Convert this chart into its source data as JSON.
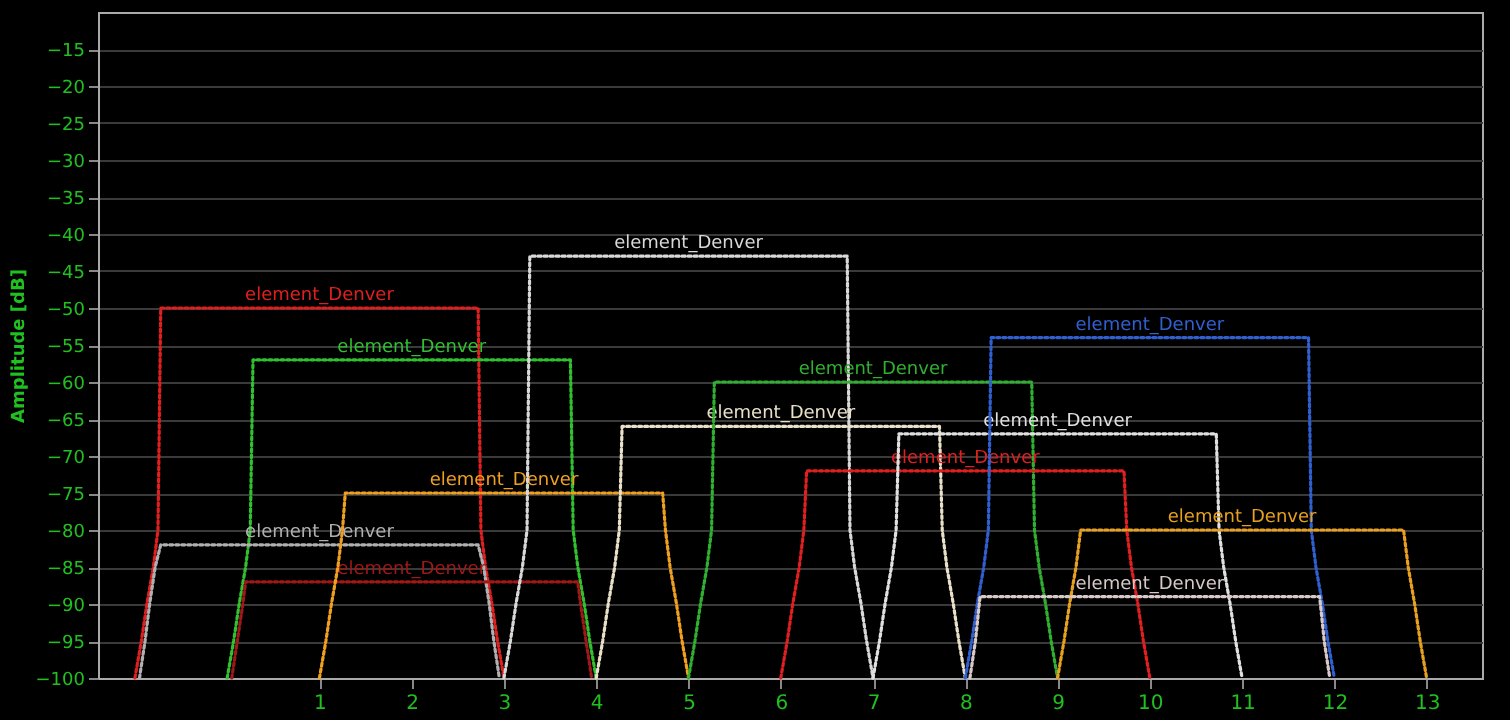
{
  "chart_data": {
    "type": "line",
    "ylabel": "Amplitude [dB]",
    "xlim": [
      -1.4,
      13.6
    ],
    "ylim": [
      -100,
      -10
    ],
    "xticks": [
      1,
      2,
      3,
      4,
      5,
      6,
      7,
      8,
      9,
      10,
      11,
      12,
      13
    ],
    "yticks": [
      -100,
      -95,
      -90,
      -85,
      -80,
      -75,
      -70,
      -65,
      -60,
      -55,
      -50,
      -45,
      -40,
      -35,
      -30,
      -25,
      -20,
      -15
    ],
    "grid": "y",
    "legend": false,
    "marker": "none",
    "line_style": "dotted",
    "series": [
      {
        "name": "element_Denver",
        "color": "#e02020",
        "x": [
          -1,
          -0.93,
          -0.87,
          -0.8,
          -0.75,
          -0.72,
          2.72,
          2.75,
          2.8,
          2.87,
          2.93,
          3
        ],
        "values": [
          -100,
          -95,
          -90,
          -85,
          -80,
          -50,
          -50,
          -80,
          -85,
          -90,
          -95,
          -100
        ]
      },
      {
        "name": "element_Denver",
        "color": "#30c030",
        "x": [
          0,
          0.07,
          0.13,
          0.2,
          0.25,
          0.28,
          3.72,
          3.75,
          3.8,
          3.87,
          3.93,
          4
        ],
        "values": [
          -100,
          -95,
          -90,
          -85,
          -80,
          -57,
          -57,
          -80,
          -85,
          -90,
          -95,
          -100
        ]
      },
      {
        "name": "element_Denver",
        "color": "#b0b0b0",
        "x": [
          -0.95,
          -0.89,
          -0.84,
          -0.78,
          -0.72,
          2.72,
          2.78,
          2.84,
          2.89,
          2.95
        ],
        "values": [
          -100,
          -95,
          -90,
          -85,
          -82,
          -82,
          -85,
          -90,
          -95,
          -100
        ]
      },
      {
        "name": "element_Denver",
        "color": "#a01818",
        "x": [
          0.05,
          0.11,
          0.17,
          0.2,
          3.8,
          3.83,
          3.89,
          3.95
        ],
        "values": [
          -100,
          -95,
          -90,
          -87,
          -87,
          -90,
          -95,
          -100
        ]
      },
      {
        "name": "element_Denver",
        "color": "#f0a020",
        "x": [
          1,
          1.07,
          1.13,
          1.2,
          1.25,
          1.28,
          4.72,
          4.75,
          4.8,
          4.87,
          4.93,
          5
        ],
        "values": [
          -100,
          -95,
          -90,
          -85,
          -80,
          -75,
          -75,
          -80,
          -85,
          -90,
          -95,
          -100
        ]
      },
      {
        "name": "element_Denver",
        "color": "#d8d8d8",
        "x": [
          3,
          3.07,
          3.13,
          3.2,
          3.25,
          3.28,
          6.72,
          6.75,
          6.8,
          6.87,
          6.93,
          7
        ],
        "values": [
          -100,
          -95,
          -90,
          -85,
          -80,
          -43,
          -43,
          -80,
          -85,
          -90,
          -95,
          -100
        ]
      },
      {
        "name": "element_Denver",
        "color": "#e8e0c8",
        "x": [
          4,
          4.07,
          4.13,
          4.2,
          4.25,
          4.28,
          7.72,
          7.75,
          7.8,
          7.87,
          7.93,
          8
        ],
        "values": [
          -100,
          -95,
          -90,
          -85,
          -80,
          -66,
          -66,
          -80,
          -85,
          -90,
          -95,
          -100
        ]
      },
      {
        "name": "element_Denver",
        "color": "#30b030",
        "x": [
          5,
          5.07,
          5.13,
          5.2,
          5.25,
          5.28,
          8.72,
          8.75,
          8.8,
          8.87,
          8.93,
          9
        ],
        "values": [
          -100,
          -95,
          -90,
          -85,
          -80,
          -60,
          -60,
          -80,
          -85,
          -90,
          -95,
          -100
        ]
      },
      {
        "name": "element_Denver",
        "color": "#e02020",
        "x": [
          6,
          6.07,
          6.13,
          6.2,
          6.25,
          6.28,
          9.72,
          9.75,
          9.8,
          9.87,
          9.93,
          10
        ],
        "values": [
          -100,
          -95,
          -90,
          -85,
          -80,
          -72,
          -72,
          -80,
          -85,
          -90,
          -95,
          -100
        ]
      },
      {
        "name": "element_Denver",
        "color": "#e0e0e0",
        "x": [
          7,
          7.07,
          7.13,
          7.2,
          7.25,
          7.28,
          10.72,
          10.75,
          10.8,
          10.87,
          10.93,
          11
        ],
        "values": [
          -100,
          -95,
          -90,
          -85,
          -80,
          -67,
          -67,
          -80,
          -85,
          -90,
          -95,
          -100
        ]
      },
      {
        "name": "element_Denver",
        "color": "#3060d0",
        "x": [
          8,
          8.07,
          8.13,
          8.2,
          8.25,
          8.28,
          11.72,
          11.75,
          11.8,
          11.87,
          11.93,
          12
        ],
        "values": [
          -100,
          -95,
          -90,
          -85,
          -80,
          -54,
          -54,
          -80,
          -85,
          -90,
          -95,
          -100
        ]
      },
      {
        "name": "element_Denver",
        "color": "#e8a020",
        "x": [
          9,
          9.07,
          9.13,
          9.2,
          9.25,
          9.28,
          12.72,
          12.75,
          12.8,
          12.87,
          12.93,
          13
        ],
        "values": [
          -100,
          -95,
          -90,
          -85,
          -80,
          -80,
          -80,
          -80,
          -85,
          -90,
          -95,
          -100
        ]
      },
      {
        "name": "element_Denver",
        "color": "#d8c8c8",
        "x": [
          8.05,
          8.11,
          8.16,
          11.84,
          11.89,
          11.95
        ],
        "values": [
          -100,
          -95,
          -89,
          -89,
          -95,
          -100
        ]
      }
    ]
  }
}
